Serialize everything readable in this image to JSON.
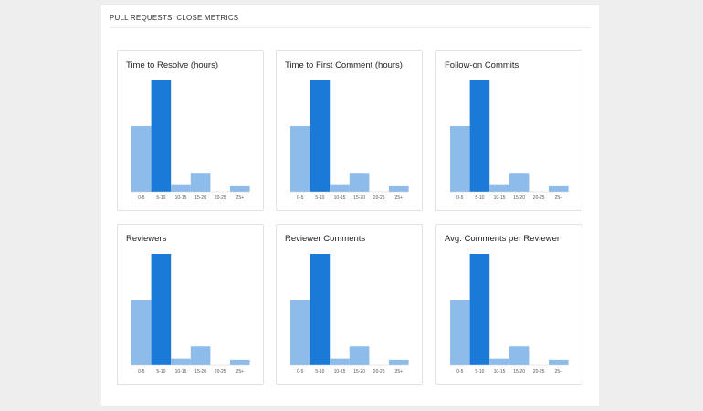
{
  "panel": {
    "title": "PULL REQUESTS: CLOSE METRICS"
  },
  "colors": {
    "bar": "#8dbbea",
    "bar_highlight": "#1b7ad7",
    "baseline": "#d0d0d0"
  },
  "chart_data": [
    {
      "type": "bar",
      "title": "Time to Resolve (hours)",
      "categories": [
        "0-5",
        "5-10",
        "10-15",
        "15-20",
        "20-25",
        "25+"
      ],
      "values": [
        59,
        100,
        6,
        17,
        0,
        5
      ],
      "highlight_index": 1,
      "ylim": [
        0,
        100
      ]
    },
    {
      "type": "bar",
      "title": "Time to First Comment (hours)",
      "categories": [
        "0-5",
        "5-10",
        "10-15",
        "15-20",
        "20-25",
        "25+"
      ],
      "values": [
        59,
        100,
        6,
        17,
        0,
        5
      ],
      "highlight_index": 1,
      "ylim": [
        0,
        100
      ]
    },
    {
      "type": "bar",
      "title": "Follow-on Commits",
      "categories": [
        "0-5",
        "5-10",
        "10-15",
        "15-20",
        "20-25",
        "25+"
      ],
      "values": [
        59,
        100,
        6,
        17,
        0,
        5
      ],
      "highlight_index": 1,
      "ylim": [
        0,
        100
      ]
    },
    {
      "type": "bar",
      "title": "Reviewers",
      "categories": [
        "0-5",
        "5-10",
        "10-15",
        "15-20",
        "20-25",
        "25+"
      ],
      "values": [
        59,
        100,
        6,
        17,
        0,
        5
      ],
      "highlight_index": 1,
      "ylim": [
        0,
        100
      ]
    },
    {
      "type": "bar",
      "title": "Reviewer Comments",
      "categories": [
        "0-5",
        "5-10",
        "10-15",
        "15-20",
        "20-25",
        "25+"
      ],
      "values": [
        59,
        100,
        6,
        17,
        0,
        5
      ],
      "highlight_index": 1,
      "ylim": [
        0,
        100
      ]
    },
    {
      "type": "bar",
      "title": "Avg. Comments per Reviewer",
      "categories": [
        "0-5",
        "5-10",
        "10-15",
        "15-20",
        "20-25",
        "25+"
      ],
      "values": [
        59,
        100,
        6,
        17,
        0,
        5
      ],
      "highlight_index": 1,
      "ylim": [
        0,
        100
      ]
    }
  ]
}
